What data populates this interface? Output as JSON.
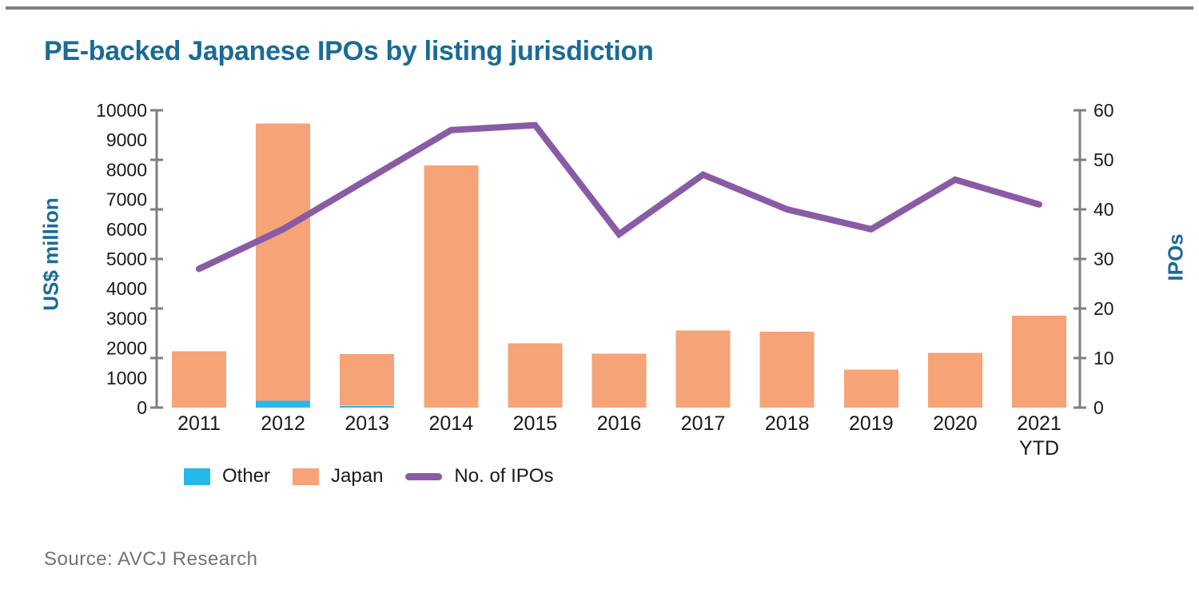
{
  "page": {
    "title": "PE-backed Japanese IPOs by listing jurisdiction",
    "source": "Source: AVCJ Research"
  },
  "colors": {
    "title": "#1a6b96",
    "axis_title": "#1a6b96",
    "axis_line": "#7f7f7f",
    "tick_text": "#1a1a1a",
    "other": "#25b8e8",
    "japan": "#f5a377",
    "ipo_line": "#8a5ba5",
    "source_text": "#737373",
    "top_rule": "#7f7f7f"
  },
  "chart_data": {
    "type": "bar",
    "stacked": true,
    "grid": false,
    "legend_position": "bottom-left",
    "categories": [
      "2011",
      "2012",
      "2013",
      "2014",
      "2015",
      "2016",
      "2017",
      "2018",
      "2019",
      "2020",
      "2021\nYTD"
    ],
    "series": [
      {
        "name": "Other",
        "color_key": "other",
        "values": [
          0,
          230,
          60,
          0,
          0,
          0,
          0,
          0,
          0,
          0,
          0
        ]
      },
      {
        "name": "Japan",
        "color_key": "japan",
        "values": [
          1900,
          9320,
          1740,
          8150,
          2170,
          1810,
          2600,
          2550,
          1280,
          1840,
          3090
        ]
      }
    ],
    "totals_usd_million": [
      1900,
      9550,
      1800,
      8150,
      2170,
      1810,
      2600,
      2550,
      1280,
      1840,
      3090
    ],
    "line_series": {
      "name": "No. of IPOs",
      "color_key": "ipo_line",
      "values": [
        28,
        36,
        46,
        56,
        57,
        35,
        47,
        40,
        36,
        46,
        41
      ]
    },
    "y_left": {
      "label": "US$ million",
      "min": 0,
      "max": 10000,
      "label_step": 1000
    },
    "y_right": {
      "label": "IPOs",
      "min": 0,
      "max": 60,
      "label_step": 10
    },
    "axis_tick_count": 7
  }
}
